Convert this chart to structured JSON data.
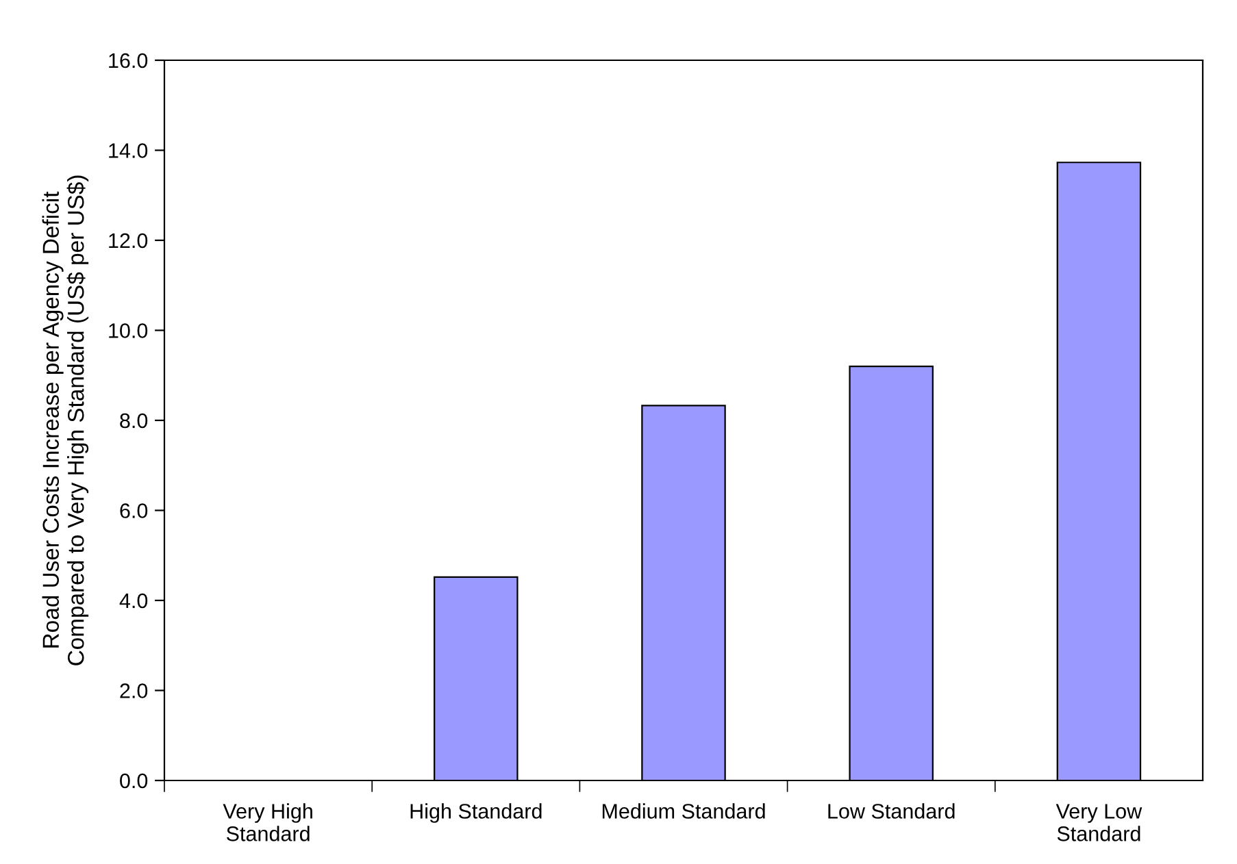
{
  "chart_data": {
    "type": "bar",
    "ylabel": "Road User Costs Increase per Agency Deficit\nCompared to Very High Standard (US$ per US$)",
    "categories": [
      "Very High\nStandard",
      "High Standard",
      "Medium Standard",
      "Low Standard",
      "Very Low\nStandard"
    ],
    "values": [
      0,
      4.52,
      8.33,
      9.2,
      13.73
    ],
    "color": "#9999ff",
    "ylim": [
      0,
      16
    ],
    "yticks": [
      {
        "value": 0,
        "label": "0.0"
      },
      {
        "value": 2,
        "label": "2.0"
      },
      {
        "value": 4,
        "label": "4.0"
      },
      {
        "value": 6,
        "label": "6.0"
      },
      {
        "value": 8,
        "label": "8.0"
      },
      {
        "value": 10,
        "label": "10.0"
      },
      {
        "value": 12,
        "label": "12.0"
      },
      {
        "value": 14,
        "label": "14.0"
      },
      {
        "value": 16,
        "label": "16.0"
      }
    ],
    "grid": false,
    "legend": false
  }
}
